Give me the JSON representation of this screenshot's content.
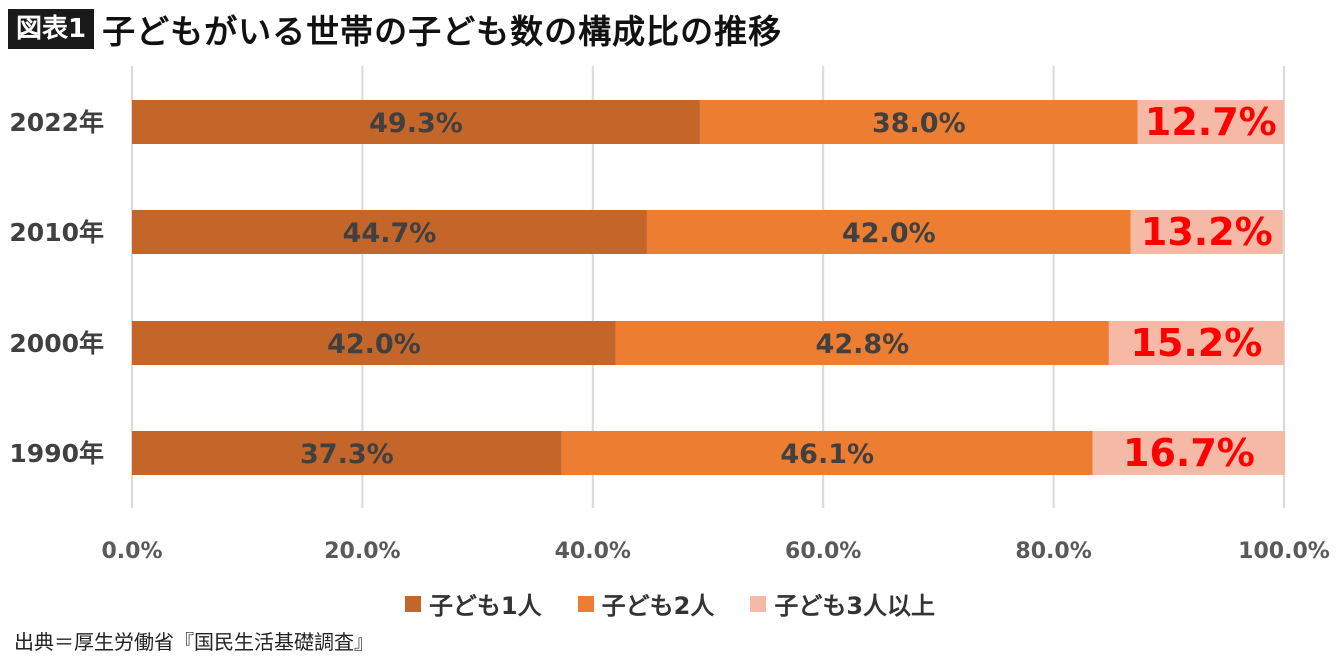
{
  "header": {
    "badge": "図表1",
    "title": "子どもがいる世帯の子ども数の構成比の推移"
  },
  "source": "出典＝厚生労働省『国民生活基礎調査』",
  "colors": {
    "one_child": "#c4652a",
    "two_children": "#ed7d31",
    "three_plus": "#f5b9a6",
    "highlight_label": "#ff0000",
    "label_dark": "#404040",
    "grid": "#d9d9d9"
  },
  "chart_data": {
    "type": "bar",
    "orientation": "horizontal",
    "stacked": true,
    "percent_stacked": true,
    "categories": [
      "2022年",
      "2010年",
      "2000年",
      "1990年"
    ],
    "series": [
      {
        "name": "子ども1人",
        "values": [
          49.3,
          44.7,
          42.0,
          37.3
        ],
        "labels": [
          "49.3%",
          "44.7%",
          "42.0%",
          "37.3%"
        ]
      },
      {
        "name": "子ども2人",
        "values": [
          38.0,
          42.0,
          42.8,
          46.1
        ],
        "labels": [
          "38.0%",
          "42.0%",
          "42.8%",
          "46.1%"
        ]
      },
      {
        "name": "子ども3人以上",
        "values": [
          12.7,
          13.2,
          15.2,
          16.7
        ],
        "labels": [
          "12.7%",
          "13.2%",
          "15.2%",
          "16.7%"
        ]
      }
    ],
    "xlim": [
      0,
      100
    ],
    "xticks": [
      "0.0%",
      "20.0%",
      "40.0%",
      "60.0%",
      "80.0%",
      "100.0%"
    ],
    "grid": true,
    "legend_position": "bottom"
  }
}
